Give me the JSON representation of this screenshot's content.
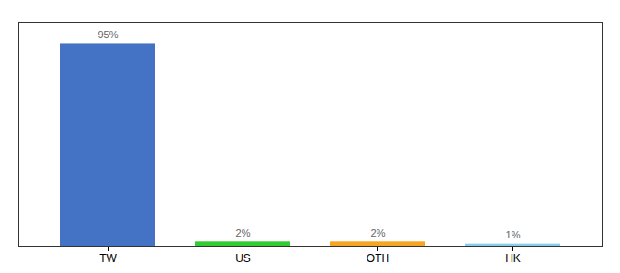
{
  "chart_data": {
    "type": "bar",
    "categories": [
      "TW",
      "US",
      "OTH",
      "HK"
    ],
    "values": [
      95,
      2,
      2,
      1
    ],
    "value_labels": [
      "95%",
      "2%",
      "2%",
      "1%"
    ],
    "colors": [
      "#4472C4",
      "#33CC33",
      "#F5A623",
      "#87CEEB"
    ],
    "ylim": [
      0,
      105
    ],
    "grid": false,
    "data_labels": true,
    "tick_labels": "x"
  }
}
